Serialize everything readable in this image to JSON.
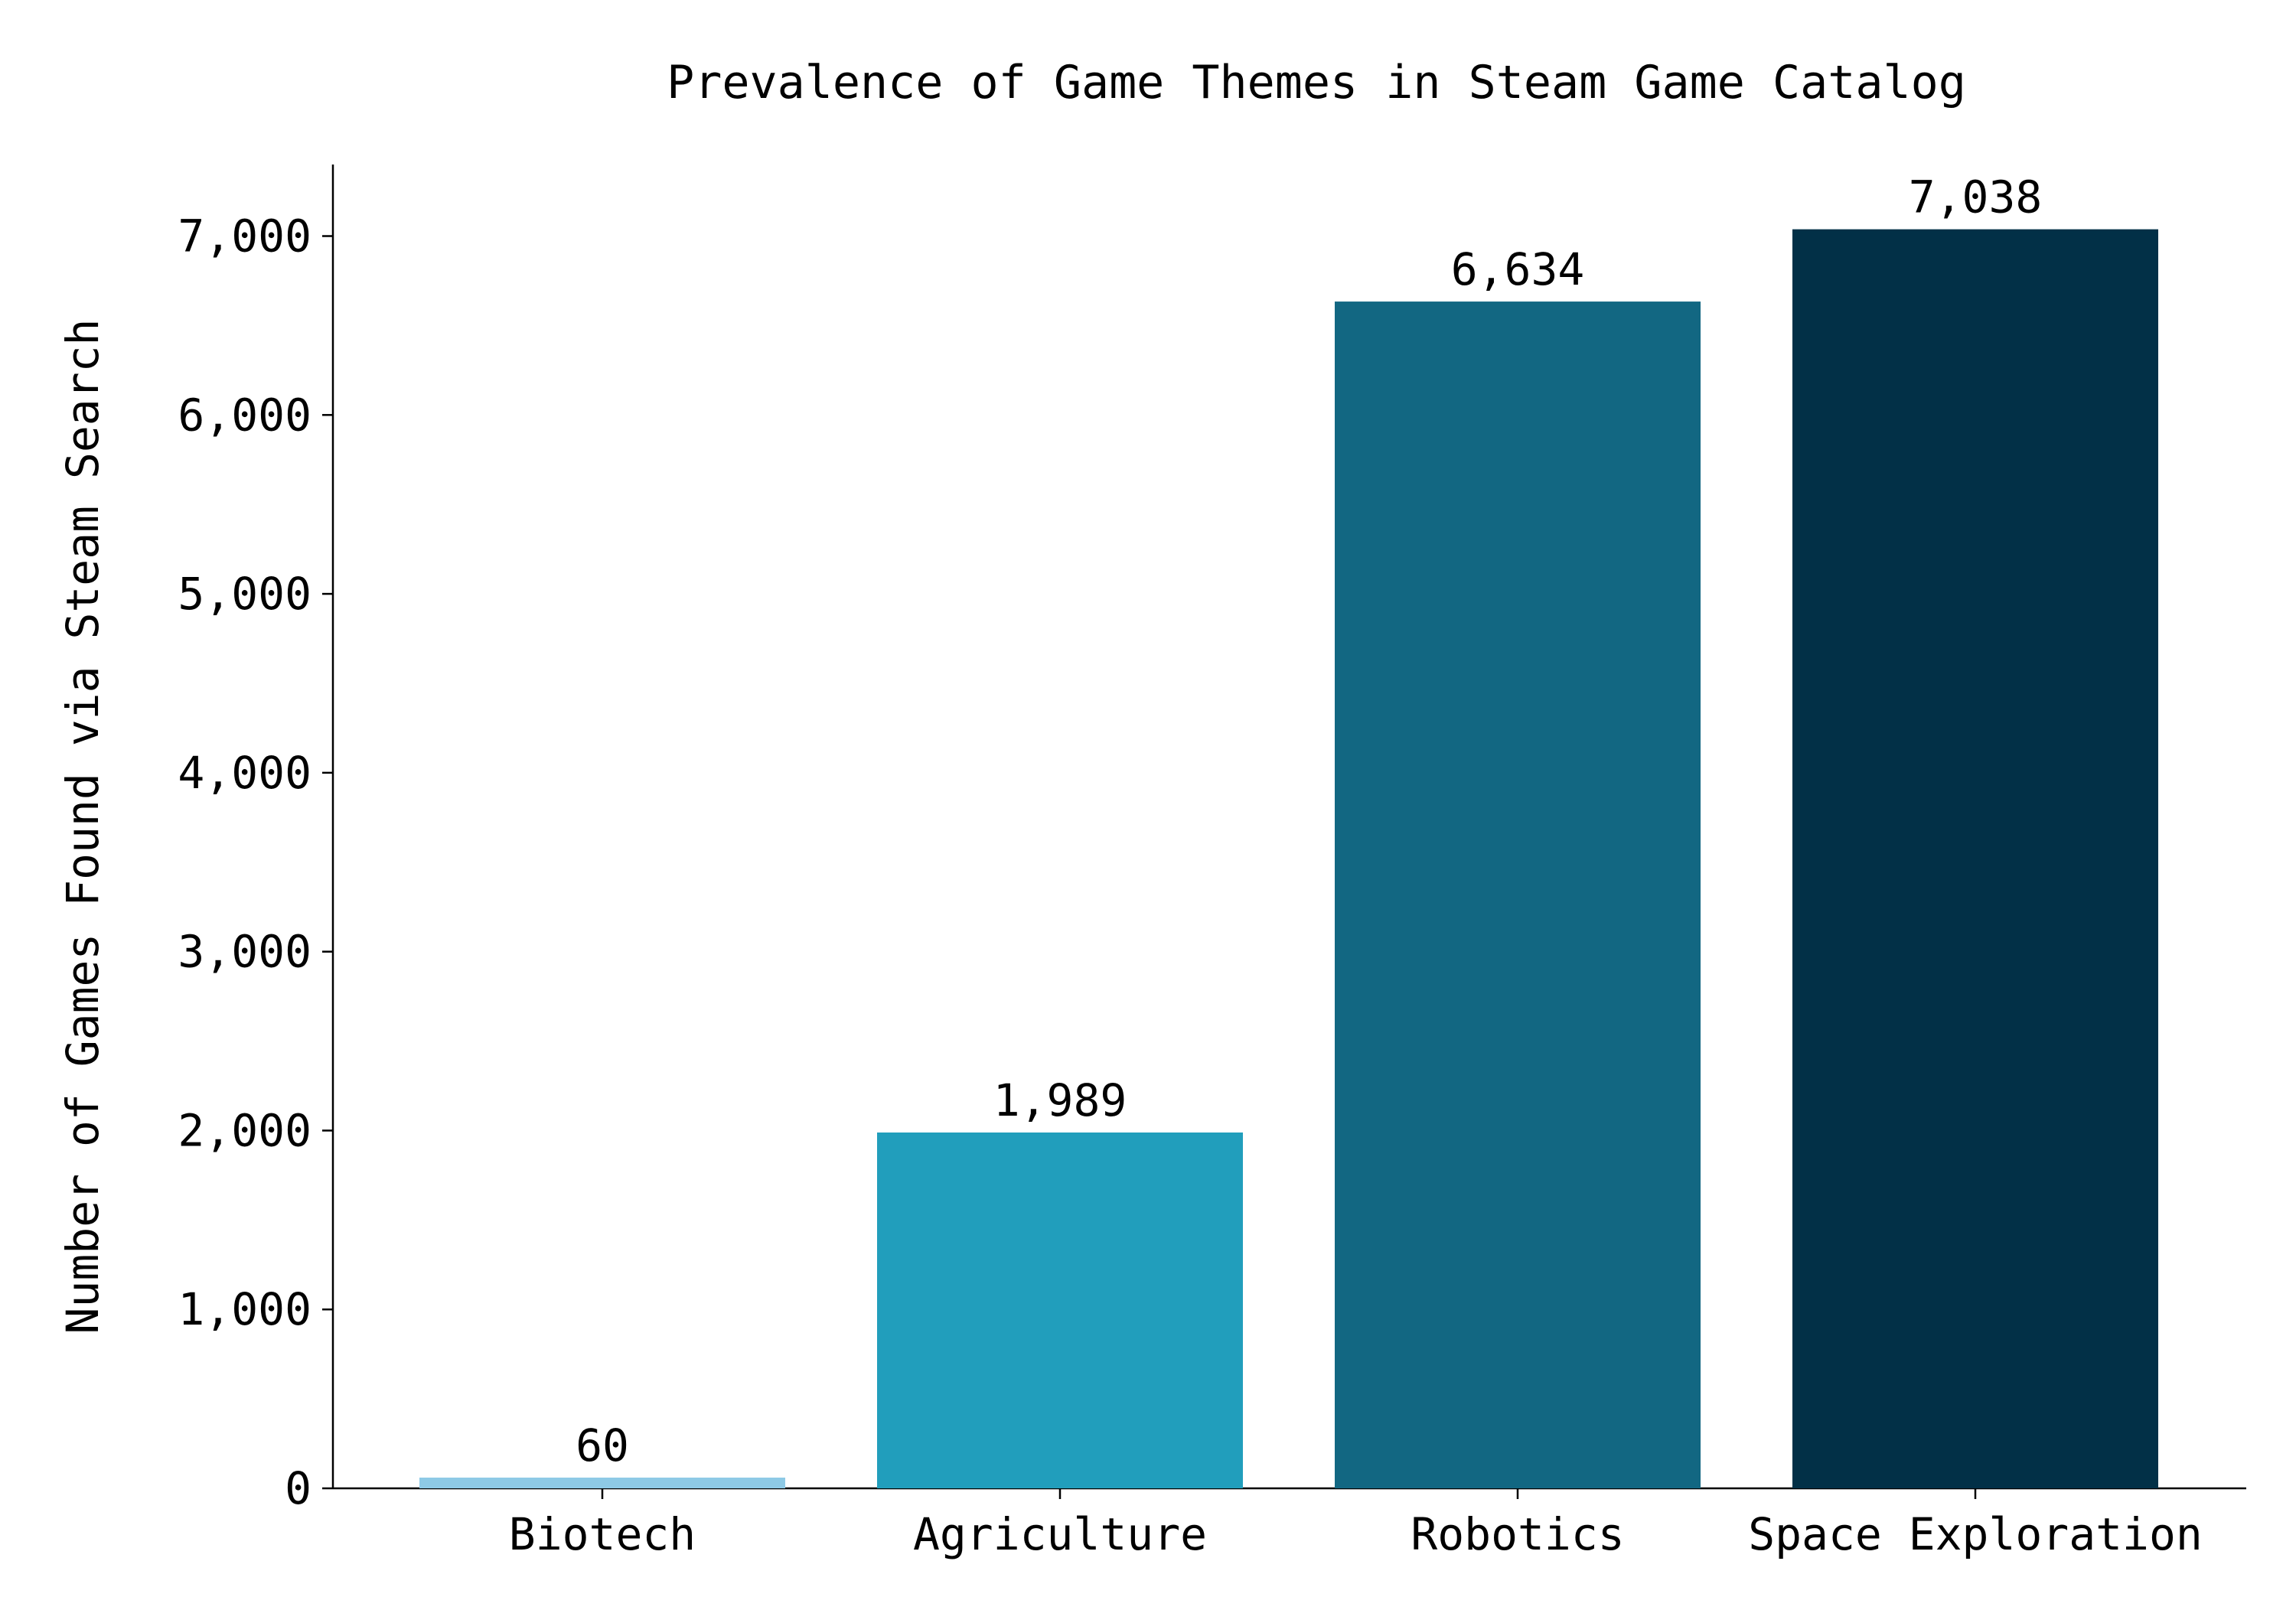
{
  "chart_data": {
    "type": "bar",
    "title": "Prevalence of Game Themes in Steam Game Catalog",
    "xlabel": "",
    "ylabel": "Number of Games Found via Steam Search",
    "categories": [
      "Biotech",
      "Agriculture",
      "Robotics",
      "Space Exploration"
    ],
    "values": [
      60,
      1989,
      6634,
      7038
    ],
    "value_labels": [
      "60",
      "1,989",
      "6,634",
      "7,038"
    ],
    "colors": [
      "#8ecae6",
      "#219ebc",
      "#126782",
      "#023047"
    ],
    "ylim": [
      0,
      7400
    ],
    "yticks": [
      0,
      1000,
      2000,
      3000,
      4000,
      5000,
      6000,
      7000
    ],
    "ytick_labels": [
      "0",
      "1,000",
      "2,000",
      "3,000",
      "4,000",
      "5,000",
      "6,000",
      "7,000"
    ],
    "grid": false,
    "legend": "none"
  }
}
